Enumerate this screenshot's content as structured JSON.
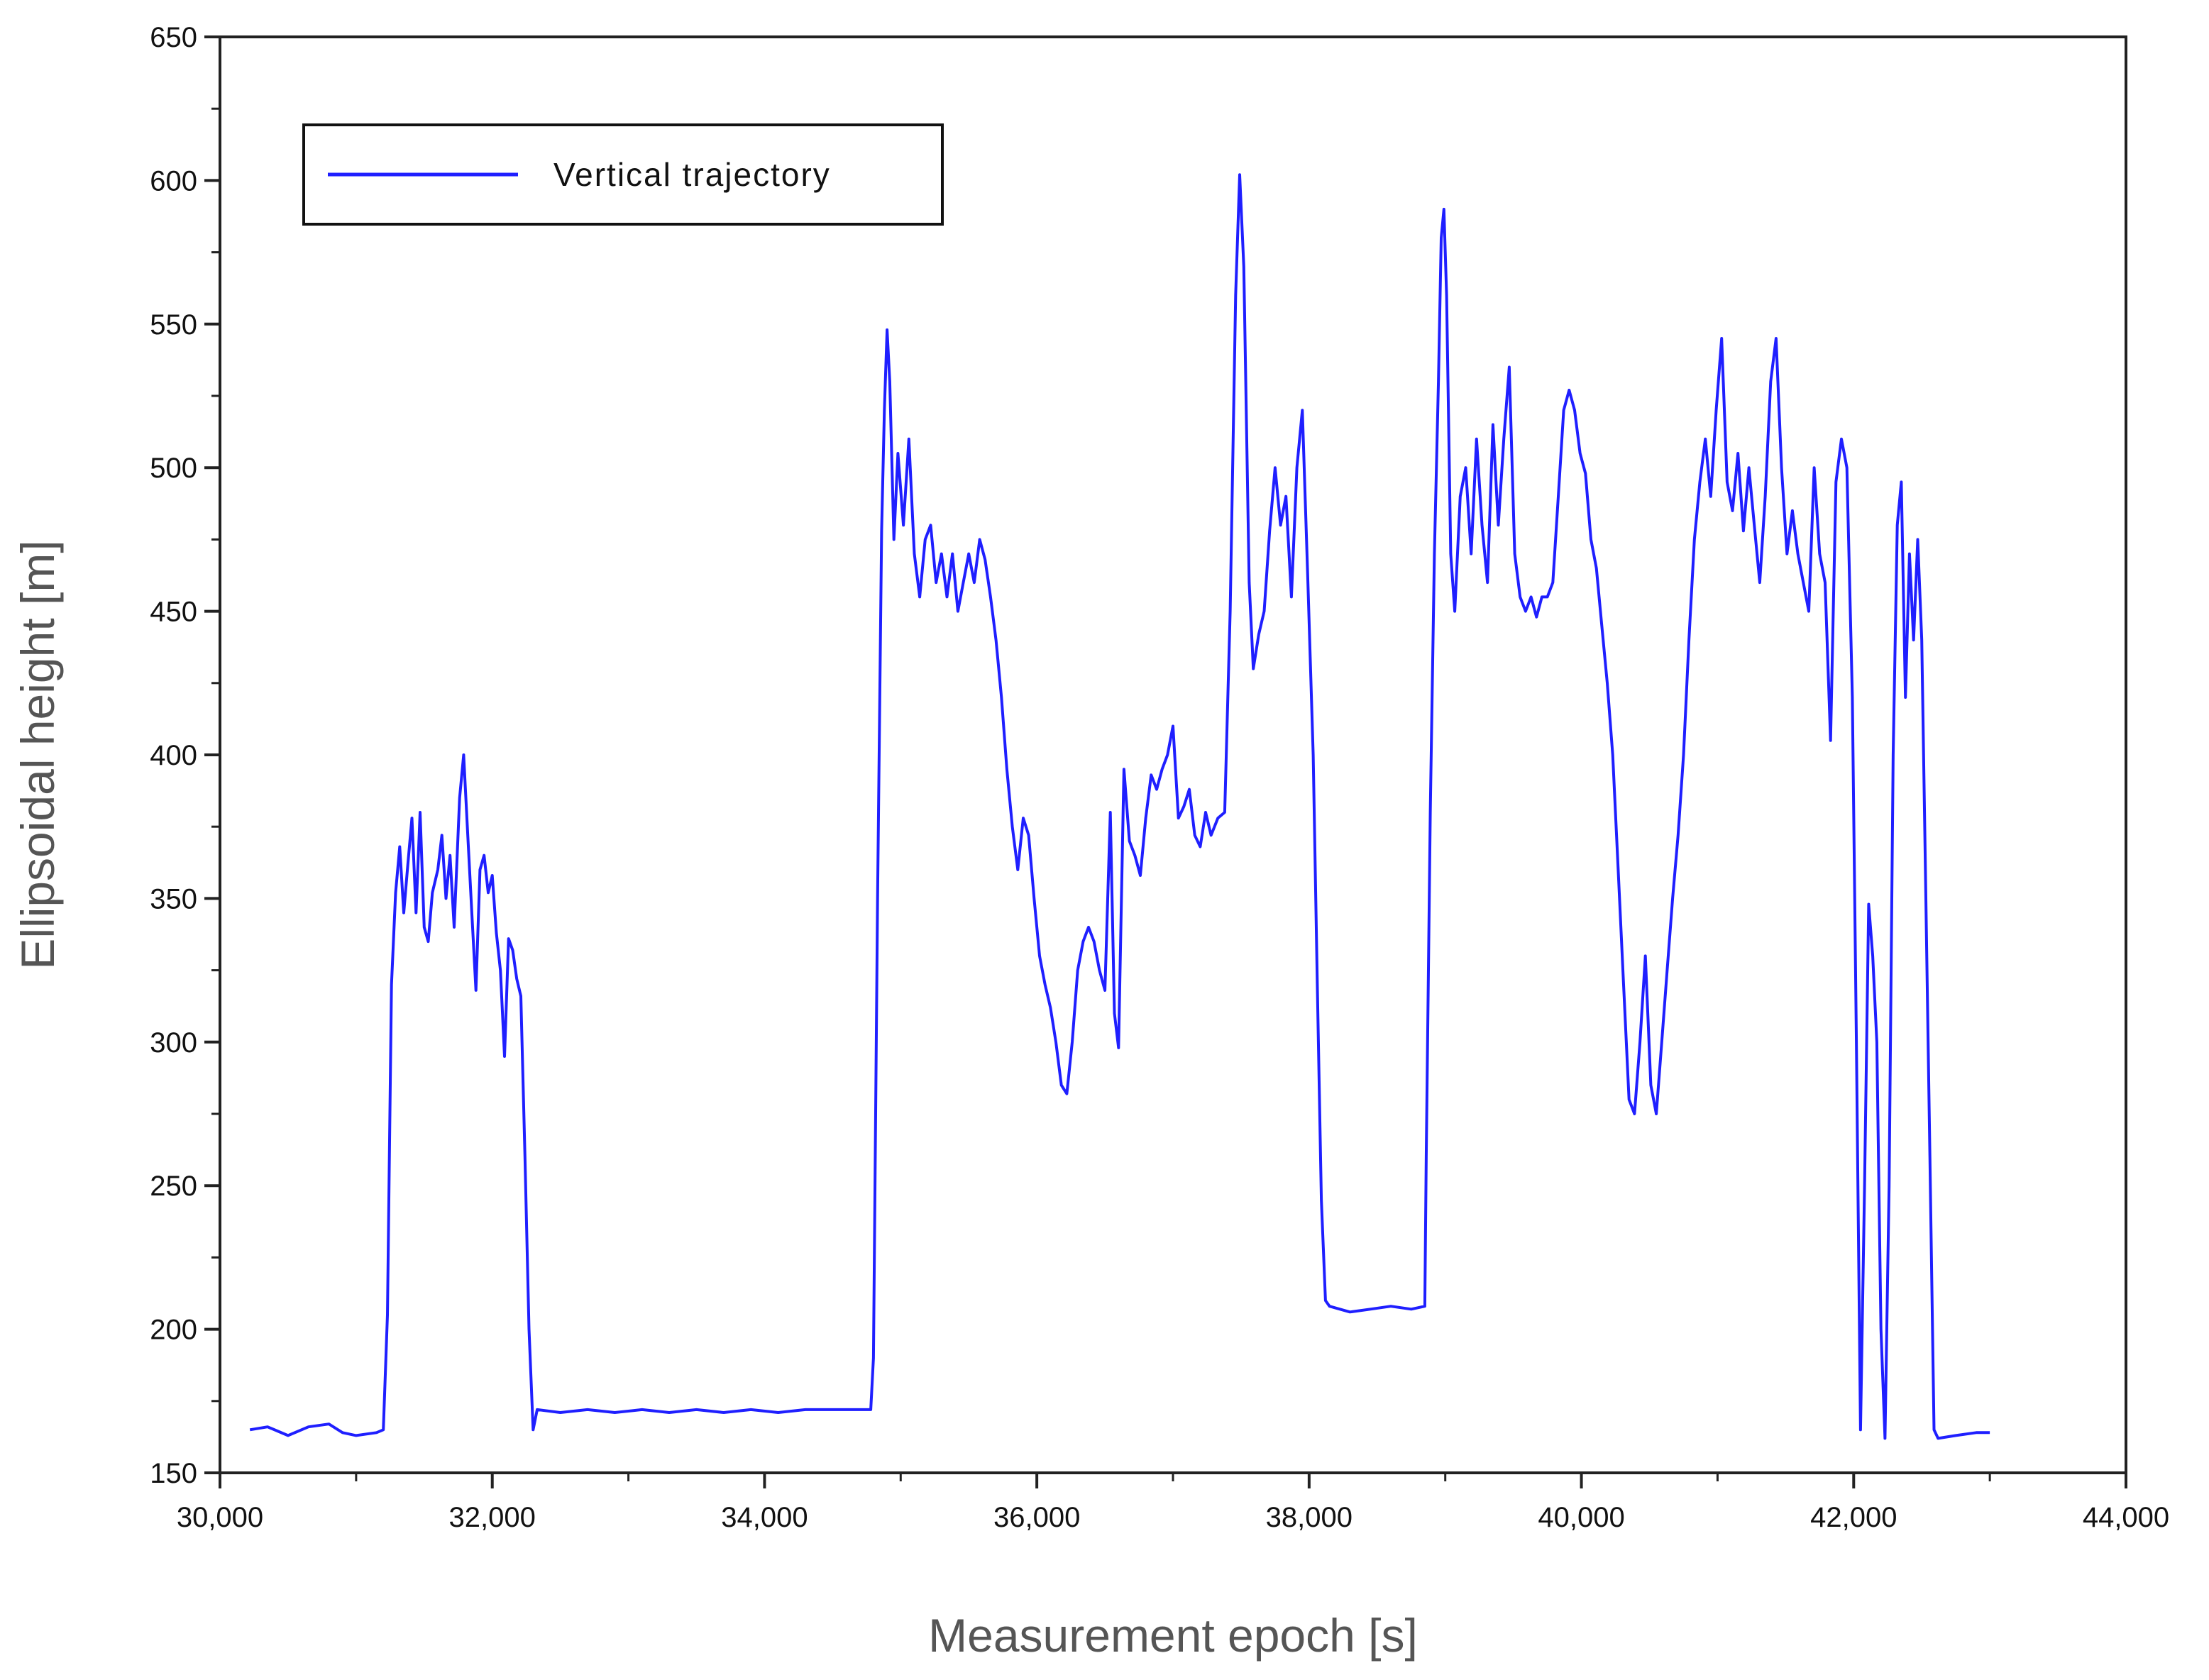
{
  "chart_data": {
    "type": "line",
    "xlabel": "Measurement epoch [s]",
    "ylabel": "Ellipsoidal height [m]",
    "xlim": [
      30000,
      44000
    ],
    "ylim": [
      150,
      650
    ],
    "xticks": [
      30000,
      32000,
      34000,
      36000,
      38000,
      40000,
      42000,
      44000
    ],
    "xtick_labels": [
      "30,000",
      "32,000",
      "34,000",
      "36,000",
      "38,000",
      "40,000",
      "42,000",
      "44,000"
    ],
    "yticks": [
      150,
      200,
      250,
      300,
      350,
      400,
      450,
      500,
      550,
      600,
      650
    ],
    "ytick_labels": [
      "150",
      "200",
      "250",
      "300",
      "350",
      "400",
      "450",
      "500",
      "550",
      "600",
      "650"
    ],
    "legend_position": "top-left",
    "grid": false,
    "series": [
      {
        "name": "Vertical trajectory",
        "color": "#1f1fff",
        "points": [
          [
            30220,
            165
          ],
          [
            30350,
            166
          ],
          [
            30500,
            163
          ],
          [
            30650,
            166
          ],
          [
            30800,
            167
          ],
          [
            30900,
            164
          ],
          [
            31000,
            163
          ],
          [
            31150,
            164
          ],
          [
            31200,
            165
          ],
          [
            31230,
            205
          ],
          [
            31260,
            320
          ],
          [
            31290,
            352
          ],
          [
            31320,
            368
          ],
          [
            31350,
            345
          ],
          [
            31380,
            362
          ],
          [
            31410,
            378
          ],
          [
            31440,
            345
          ],
          [
            31470,
            380
          ],
          [
            31500,
            340
          ],
          [
            31530,
            335
          ],
          [
            31560,
            352
          ],
          [
            31600,
            360
          ],
          [
            31630,
            372
          ],
          [
            31660,
            350
          ],
          [
            31690,
            365
          ],
          [
            31720,
            340
          ],
          [
            31760,
            385
          ],
          [
            31790,
            400
          ],
          [
            31820,
            372
          ],
          [
            31850,
            345
          ],
          [
            31880,
            318
          ],
          [
            31910,
            360
          ],
          [
            31940,
            365
          ],
          [
            31970,
            352
          ],
          [
            32000,
            358
          ],
          [
            32030,
            338
          ],
          [
            32060,
            325
          ],
          [
            32090,
            295
          ],
          [
            32120,
            336
          ],
          [
            32150,
            332
          ],
          [
            32180,
            322
          ],
          [
            32210,
            316
          ],
          [
            32240,
            260
          ],
          [
            32270,
            200
          ],
          [
            32300,
            165
          ],
          [
            32330,
            172
          ],
          [
            32500,
            171
          ],
          [
            32700,
            172
          ],
          [
            32900,
            171
          ],
          [
            33100,
            172
          ],
          [
            33300,
            171
          ],
          [
            33500,
            172
          ],
          [
            33700,
            171
          ],
          [
            33900,
            172
          ],
          [
            34100,
            171
          ],
          [
            34300,
            172
          ],
          [
            34500,
            172
          ],
          [
            34650,
            172
          ],
          [
            34780,
            172
          ],
          [
            34800,
            190
          ],
          [
            34830,
            350
          ],
          [
            34860,
            478
          ],
          [
            34880,
            520
          ],
          [
            34900,
            548
          ],
          [
            34920,
            530
          ],
          [
            34950,
            475
          ],
          [
            34980,
            505
          ],
          [
            35020,
            480
          ],
          [
            35060,
            510
          ],
          [
            35100,
            470
          ],
          [
            35140,
            455
          ],
          [
            35180,
            475
          ],
          [
            35220,
            480
          ],
          [
            35260,
            460
          ],
          [
            35300,
            470
          ],
          [
            35340,
            455
          ],
          [
            35380,
            470
          ],
          [
            35420,
            450
          ],
          [
            35460,
            460
          ],
          [
            35500,
            470
          ],
          [
            35540,
            460
          ],
          [
            35580,
            475
          ],
          [
            35620,
            468
          ],
          [
            35660,
            455
          ],
          [
            35700,
            440
          ],
          [
            35740,
            420
          ],
          [
            35780,
            395
          ],
          [
            35820,
            375
          ],
          [
            35860,
            360
          ],
          [
            35900,
            378
          ],
          [
            35940,
            372
          ],
          [
            35980,
            350
          ],
          [
            36020,
            330
          ],
          [
            36060,
            320
          ],
          [
            36100,
            312
          ],
          [
            36140,
            300
          ],
          [
            36180,
            285
          ],
          [
            36220,
            282
          ],
          [
            36260,
            300
          ],
          [
            36300,
            325
          ],
          [
            36340,
            335
          ],
          [
            36380,
            340
          ],
          [
            36420,
            335
          ],
          [
            36460,
            325
          ],
          [
            36500,
            318
          ],
          [
            36540,
            380
          ],
          [
            36570,
            310
          ],
          [
            36600,
            298
          ],
          [
            36640,
            395
          ],
          [
            36680,
            370
          ],
          [
            36720,
            365
          ],
          [
            36760,
            358
          ],
          [
            36800,
            378
          ],
          [
            36840,
            393
          ],
          [
            36880,
            388
          ],
          [
            36920,
            395
          ],
          [
            36960,
            400
          ],
          [
            37000,
            410
          ],
          [
            37040,
            378
          ],
          [
            37080,
            382
          ],
          [
            37120,
            388
          ],
          [
            37160,
            372
          ],
          [
            37200,
            368
          ],
          [
            37240,
            380
          ],
          [
            37280,
            372
          ],
          [
            37330,
            378
          ],
          [
            37380,
            380
          ],
          [
            37420,
            450
          ],
          [
            37460,
            560
          ],
          [
            37490,
            602
          ],
          [
            37520,
            570
          ],
          [
            37560,
            460
          ],
          [
            37590,
            430
          ],
          [
            37630,
            442
          ],
          [
            37670,
            450
          ],
          [
            37710,
            478
          ],
          [
            37750,
            500
          ],
          [
            37790,
            480
          ],
          [
            37830,
            490
          ],
          [
            37870,
            455
          ],
          [
            37910,
            500
          ],
          [
            37950,
            520
          ],
          [
            37990,
            462
          ],
          [
            38030,
            400
          ],
          [
            38060,
            320
          ],
          [
            38090,
            245
          ],
          [
            38120,
            210
          ],
          [
            38150,
            208
          ],
          [
            38300,
            206
          ],
          [
            38450,
            207
          ],
          [
            38600,
            208
          ],
          [
            38750,
            207
          ],
          [
            38850,
            208
          ],
          [
            38860,
            260
          ],
          [
            38890,
            380
          ],
          [
            38920,
            470
          ],
          [
            38950,
            530
          ],
          [
            38970,
            580
          ],
          [
            38990,
            590
          ],
          [
            39010,
            560
          ],
          [
            39040,
            470
          ],
          [
            39070,
            450
          ],
          [
            39110,
            490
          ],
          [
            39150,
            500
          ],
          [
            39190,
            470
          ],
          [
            39230,
            510
          ],
          [
            39270,
            480
          ],
          [
            39310,
            460
          ],
          [
            39350,
            515
          ],
          [
            39390,
            480
          ],
          [
            39430,
            510
          ],
          [
            39470,
            535
          ],
          [
            39510,
            470
          ],
          [
            39550,
            455
          ],
          [
            39590,
            450
          ],
          [
            39630,
            455
          ],
          [
            39670,
            448
          ],
          [
            39710,
            455
          ],
          [
            39750,
            455
          ],
          [
            39790,
            460
          ],
          [
            39830,
            490
          ],
          [
            39870,
            520
          ],
          [
            39910,
            527
          ],
          [
            39950,
            520
          ],
          [
            39990,
            505
          ],
          [
            40030,
            498
          ],
          [
            40070,
            475
          ],
          [
            40110,
            465
          ],
          [
            40150,
            445
          ],
          [
            40190,
            425
          ],
          [
            40230,
            400
          ],
          [
            40270,
            360
          ],
          [
            40310,
            320
          ],
          [
            40350,
            280
          ],
          [
            40390,
            275
          ],
          [
            40430,
            300
          ],
          [
            40470,
            330
          ],
          [
            40510,
            285
          ],
          [
            40550,
            275
          ],
          [
            40590,
            300
          ],
          [
            40630,
            325
          ],
          [
            40670,
            350
          ],
          [
            40710,
            372
          ],
          [
            40750,
            400
          ],
          [
            40790,
            440
          ],
          [
            40830,
            475
          ],
          [
            40870,
            495
          ],
          [
            40910,
            510
          ],
          [
            40950,
            490
          ],
          [
            40990,
            520
          ],
          [
            41030,
            545
          ],
          [
            41070,
            495
          ],
          [
            41110,
            485
          ],
          [
            41150,
            505
          ],
          [
            41190,
            478
          ],
          [
            41230,
            500
          ],
          [
            41270,
            480
          ],
          [
            41310,
            460
          ],
          [
            41350,
            490
          ],
          [
            41390,
            530
          ],
          [
            41430,
            545
          ],
          [
            41470,
            500
          ],
          [
            41510,
            470
          ],
          [
            41550,
            485
          ],
          [
            41590,
            470
          ],
          [
            41630,
            460
          ],
          [
            41670,
            450
          ],
          [
            41710,
            500
          ],
          [
            41750,
            470
          ],
          [
            41790,
            460
          ],
          [
            41830,
            405
          ],
          [
            41870,
            495
          ],
          [
            41910,
            510
          ],
          [
            41950,
            500
          ],
          [
            41990,
            420
          ],
          [
            42020,
            300
          ],
          [
            42050,
            165
          ],
          [
            42080,
            250
          ],
          [
            42110,
            348
          ],
          [
            42140,
            330
          ],
          [
            42170,
            300
          ],
          [
            42200,
            200
          ],
          [
            42230,
            162
          ],
          [
            42260,
            250
          ],
          [
            42290,
            400
          ],
          [
            42320,
            480
          ],
          [
            42350,
            495
          ],
          [
            42380,
            420
          ],
          [
            42410,
            470
          ],
          [
            42440,
            440
          ],
          [
            42470,
            475
          ],
          [
            42500,
            440
          ],
          [
            42530,
            350
          ],
          [
            42560,
            260
          ],
          [
            42590,
            165
          ],
          [
            42620,
            162
          ],
          [
            42750,
            163
          ],
          [
            42900,
            164
          ],
          [
            43000,
            164
          ]
        ]
      }
    ]
  }
}
